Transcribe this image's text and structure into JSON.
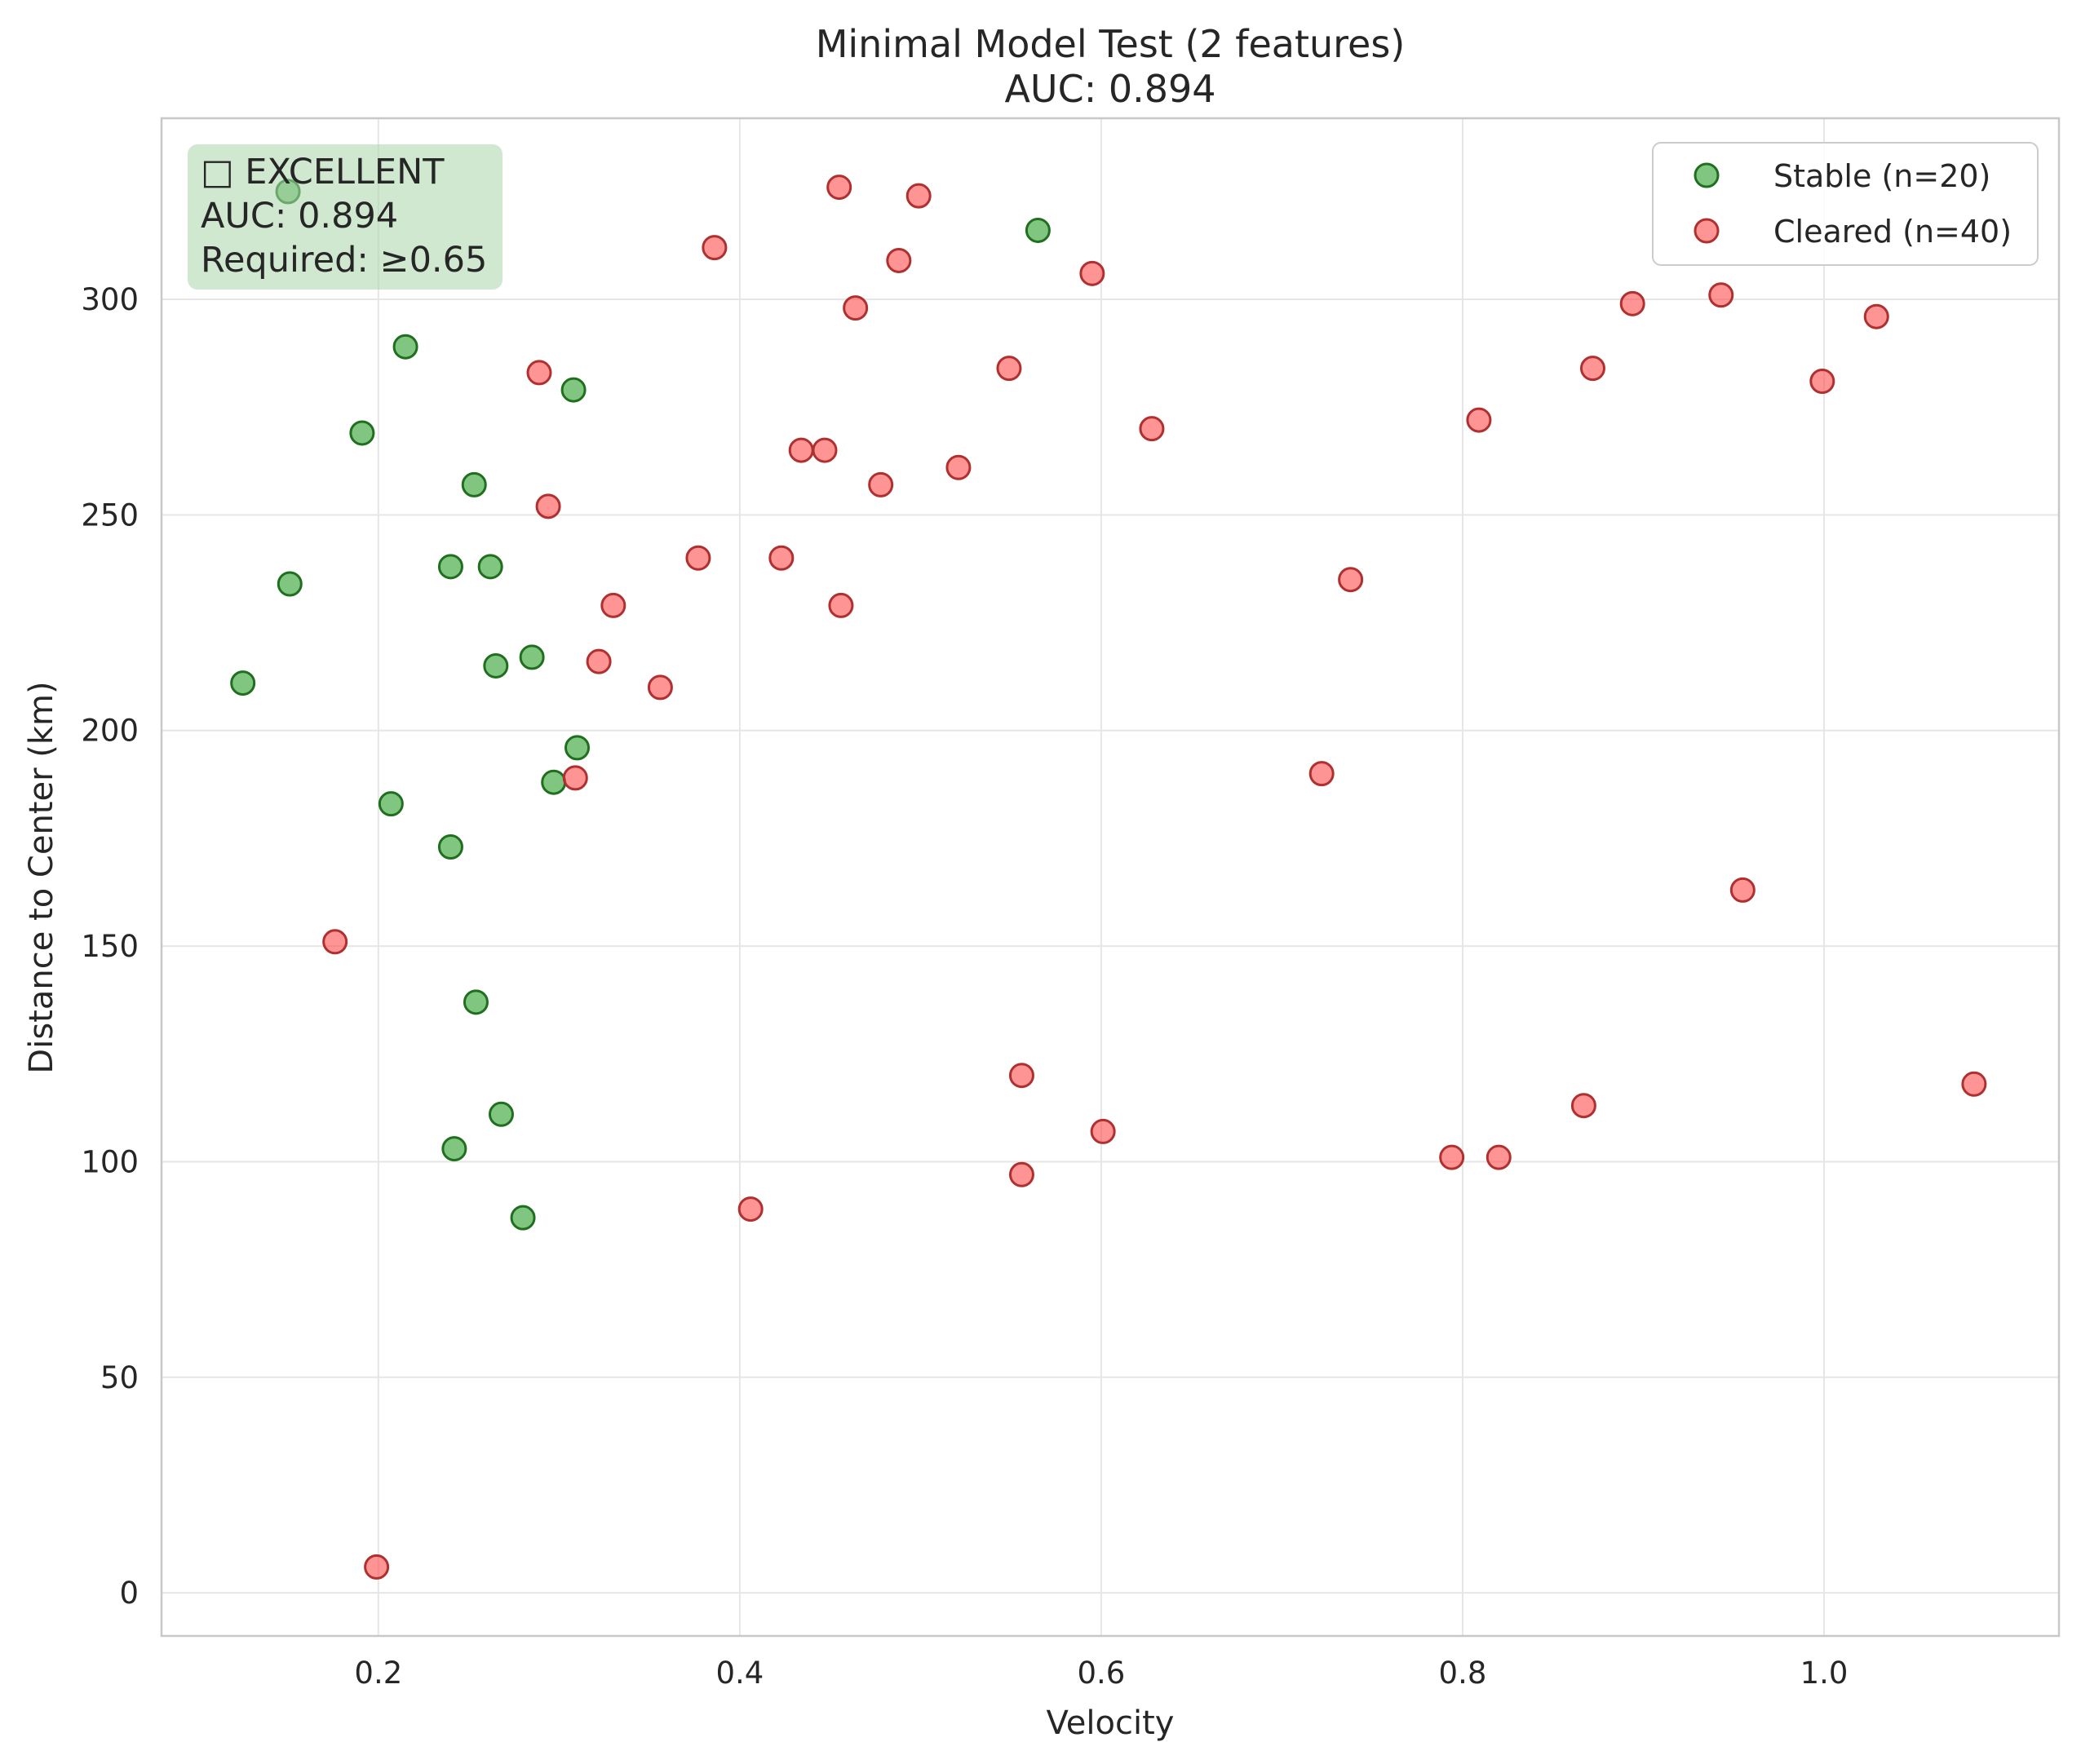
{
  "chart_data": {
    "type": "scatter",
    "title": "Minimal Model Test (2 features)",
    "subtitle": "AUC: 0.894",
    "xlabel": "Velocity",
    "ylabel": "Distance to Center (km)",
    "xlim": [
      0.08,
      1.13
    ],
    "ylim": [
      -10,
      342
    ],
    "xticks": [
      0.2,
      0.4,
      0.6,
      0.8,
      1.0
    ],
    "xtick_labels": [
      "0.2",
      "0.4",
      "0.6",
      "0.8",
      "1.0"
    ],
    "yticks": [
      0,
      50,
      100,
      150,
      200,
      250,
      300
    ],
    "ytick_labels": [
      "0",
      "50",
      "100",
      "150",
      "200",
      "250",
      "300"
    ],
    "grid": true,
    "legend": "top-right",
    "status_box": {
      "lines": [
        "□ EXCELLENT",
        "AUC: 0.894",
        "Required: ≥0.65"
      ],
      "color": "#a9d6a9"
    },
    "series": [
      {
        "name": "Stable (n=20)",
        "color": "#2ca02c",
        "edge_color": "#1f6f1f",
        "points": [
          [
            0.15,
            325
          ],
          [
            0.565,
            316
          ],
          [
            0.215,
            289
          ],
          [
            0.308,
            279
          ],
          [
            0.191,
            269
          ],
          [
            0.253,
            257
          ],
          [
            0.151,
            234
          ],
          [
            0.24,
            238
          ],
          [
            0.262,
            238
          ],
          [
            0.125,
            211
          ],
          [
            0.285,
            217
          ],
          [
            0.265,
            215
          ],
          [
            0.31,
            196
          ],
          [
            0.297,
            188
          ],
          [
            0.207,
            183
          ],
          [
            0.24,
            173
          ],
          [
            0.254,
            137
          ],
          [
            0.268,
            111
          ],
          [
            0.242,
            103
          ],
          [
            0.28,
            87
          ]
        ]
      },
      {
        "name": "Cleared (n=40)",
        "color": "#ff4d4d",
        "edge_color": "#b03030",
        "points": [
          [
            0.455,
            326
          ],
          [
            0.499,
            324
          ],
          [
            0.386,
            312
          ],
          [
            0.488,
            309
          ],
          [
            0.595,
            306
          ],
          [
            0.464,
            298
          ],
          [
            0.894,
            299
          ],
          [
            0.943,
            301
          ],
          [
            1.029,
            296
          ],
          [
            0.289,
            283
          ],
          [
            0.549,
            284
          ],
          [
            0.872,
            284
          ],
          [
            0.999,
            281
          ],
          [
            0.809,
            272
          ],
          [
            0.628,
            270
          ],
          [
            0.434,
            265
          ],
          [
            0.447,
            265
          ],
          [
            0.521,
            261
          ],
          [
            0.478,
            257
          ],
          [
            0.294,
            252
          ],
          [
            0.377,
            240
          ],
          [
            0.423,
            240
          ],
          [
            0.738,
            235
          ],
          [
            0.33,
            229
          ],
          [
            0.456,
            229
          ],
          [
            0.322,
            216
          ],
          [
            0.356,
            210
          ],
          [
            0.722,
            190
          ],
          [
            0.309,
            189
          ],
          [
            0.955,
            163
          ],
          [
            0.176,
            151
          ],
          [
            0.556,
            120
          ],
          [
            1.083,
            118
          ],
          [
            0.867,
            113
          ],
          [
            0.601,
            107
          ],
          [
            0.82,
            101
          ],
          [
            0.794,
            101
          ],
          [
            0.556,
            97
          ],
          [
            0.406,
            89
          ],
          [
            0.199,
            6
          ]
        ]
      }
    ]
  }
}
